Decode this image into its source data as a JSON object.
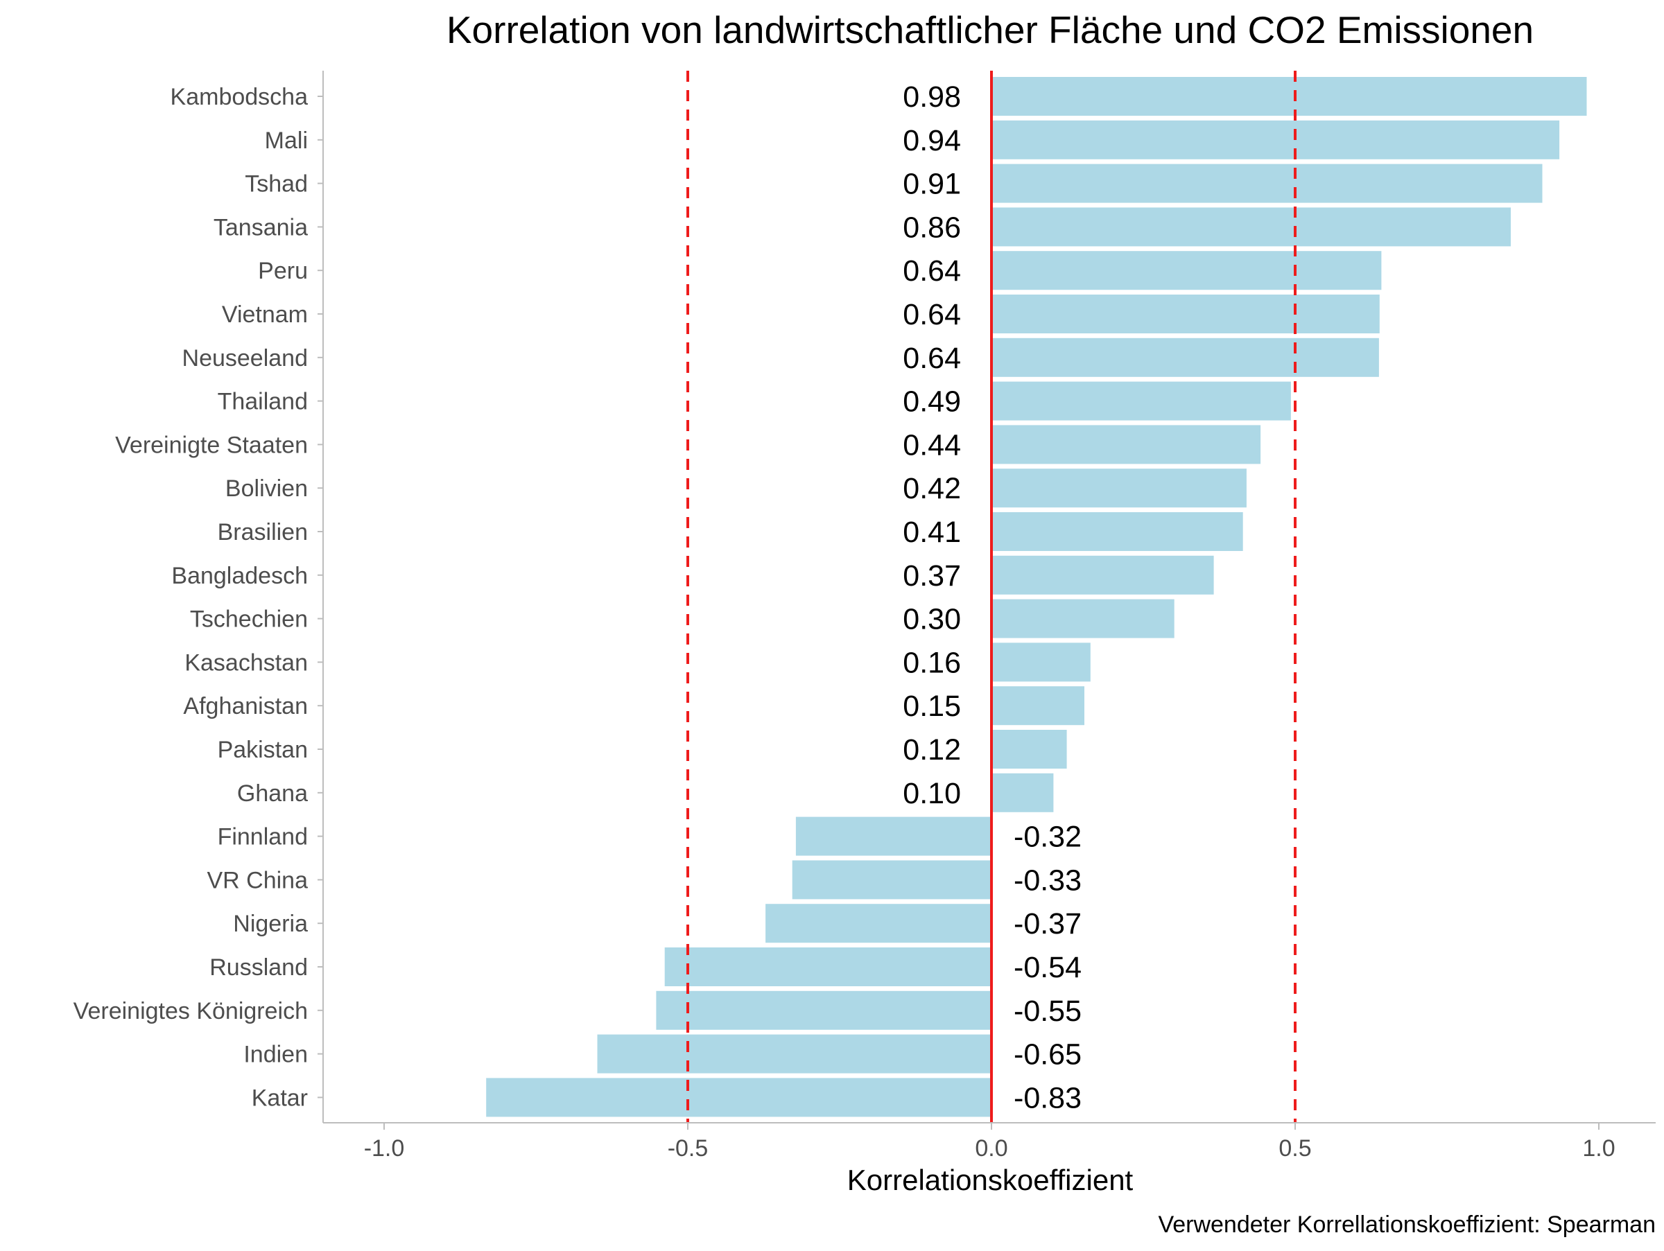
{
  "chart_data": {
    "type": "bar",
    "orientation": "horizontal",
    "title": "Korrelation von landwirtschaftlicher Fläche und CO2 Emissionen",
    "xlabel": "Korrelationskoeffizient",
    "ylabel": "",
    "caption": "Verwendeter Korrellationskoeffizient: Spearman",
    "xlim": [
      -1.0,
      1.0
    ],
    "xticks": [
      -1.0,
      -0.5,
      0.0,
      0.5,
      1.0
    ],
    "xtick_labels": [
      "-1.0",
      "-0.5",
      "0.0",
      "0.5",
      "1.0"
    ],
    "reference_lines": [
      -0.5,
      0.0,
      0.5
    ],
    "grid": false,
    "categories": [
      "Kambodscha",
      "Mali",
      "Tshad",
      "Tansania",
      "Peru",
      "Vietnam",
      "Neuseeland",
      "Thailand",
      "Vereinigte Staaten",
      "Bolivien",
      "Brasilien",
      "Bangladesch",
      "Tschechien",
      "Kasachstan",
      "Afghanistan",
      "Pakistan",
      "Ghana",
      "Finnland",
      "VR China",
      "Nigeria",
      "Russland",
      "Vereinigtes Königreich",
      "Indien",
      "Katar"
    ],
    "values": [
      0.98,
      0.935,
      0.907,
      0.855,
      0.642,
      0.639,
      0.638,
      0.493,
      0.443,
      0.42,
      0.414,
      0.366,
      0.301,
      0.163,
      0.153,
      0.124,
      0.102,
      -0.322,
      -0.328,
      -0.372,
      -0.538,
      -0.552,
      -0.649,
      -0.832
    ],
    "value_labels": [
      "0.98",
      "0.94",
      "0.91",
      "0.86",
      "0.64",
      "0.64",
      "0.64",
      "0.49",
      "0.44",
      "0.42",
      "0.41",
      "0.37",
      "0.30",
      "0.16",
      "0.15",
      "0.12",
      "0.10",
      "-0.32",
      "-0.33",
      "-0.37",
      "-0.54",
      "-0.55",
      "-0.65",
      "-0.83"
    ],
    "colors": {
      "bar": "#add8e6",
      "reference_line": "#ee1c1c",
      "axis": "#bdbdbd",
      "tick_label": "#4d4d4d",
      "text": "#000000"
    }
  }
}
